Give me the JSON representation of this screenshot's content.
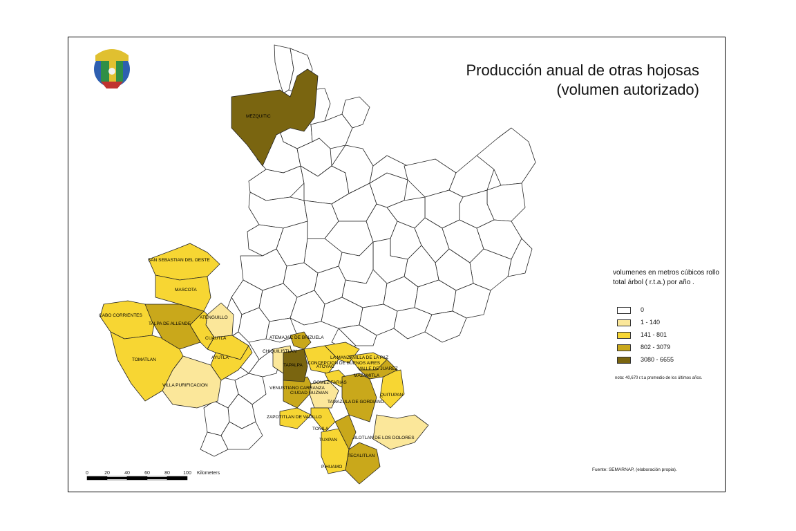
{
  "map": {
    "title_line1": "Producción anual de otras hojosas",
    "title_line2": "(volumen autorizado)",
    "legend": {
      "title": "volumenes en metros cúbicos rollo total árbol ( r.t.a.) por año .",
      "classes": [
        {
          "label": "0",
          "color": "#ffffff"
        },
        {
          "label": "1 - 140",
          "color": "#fbe79a"
        },
        {
          "label": "141 - 801",
          "color": "#f7d633"
        },
        {
          "label": "802 - 3079",
          "color": "#c9a81b"
        },
        {
          "label": "3080 - 6655",
          "color": "#7a6510"
        }
      ]
    },
    "note": "nota: 40,670 r.t.a promedio de los últimos años.",
    "source": "Fuente: SEMARNAP, (elaboración propia).",
    "scale": {
      "ticks": [
        "0",
        "20",
        "40",
        "60",
        "80",
        "100"
      ],
      "unit": "Kilometers"
    },
    "municipios": [
      {
        "name": "MEZQUITIC",
        "class": "3080 - 6655"
      },
      {
        "name": "SAN SEBASTIAN DEL OESTE",
        "class": "141 - 801"
      },
      {
        "name": "MASCOTA",
        "class": "141 - 801"
      },
      {
        "name": "CABO CORRIENTES",
        "class": "141 - 801"
      },
      {
        "name": "TALPA DE ALLENDE",
        "class": "802 - 3079"
      },
      {
        "name": "ATENGUILLO",
        "class": "1 - 140"
      },
      {
        "name": "CUAUTLA",
        "class": "141 - 801"
      },
      {
        "name": "AYUTLA",
        "class": "141 - 801"
      },
      {
        "name": "TOMATLAN",
        "class": "141 - 801"
      },
      {
        "name": "VILLA PURIFICACION",
        "class": "1 - 140"
      },
      {
        "name": "ATEMAJAC DE BRIZUELA",
        "class": "802 - 3079"
      },
      {
        "name": "CHIQUILISTLAN",
        "class": "1 - 140"
      },
      {
        "name": "TAPALPA",
        "class": "3080 - 6655"
      },
      {
        "name": "ATOYAC",
        "class": "141 - 801"
      },
      {
        "name": "CONCEPCION DE BUENOS AIRES",
        "class": "141 - 801"
      },
      {
        "name": "LA MANZANILLA DE LA PAZ",
        "class": "141 - 801"
      },
      {
        "name": "VALLE DE JUAREZ",
        "class": "802 - 3079"
      },
      {
        "name": "MAZAMITLA",
        "class": "802 - 3079"
      },
      {
        "name": "GOMEZ FARIAS",
        "class": "141 - 801"
      },
      {
        "name": "VENUSTIANO CARRANZA",
        "class": "802 - 3079"
      },
      {
        "name": "CIUDAD GUZMAN",
        "class": "1 - 140"
      },
      {
        "name": "QUITUPAN",
        "class": "141 - 801"
      },
      {
        "name": "TAMAZULA DE GORDIANO",
        "class": "802 - 3079"
      },
      {
        "name": "ZAPOTITLAN DE VADILLO",
        "class": "141 - 801"
      },
      {
        "name": "TONILA",
        "class": "141 - 801"
      },
      {
        "name": "TUXPAN",
        "class": "802 - 3079"
      },
      {
        "name": "JILOTLAN DE LOS DOLORES",
        "class": "1 - 140"
      },
      {
        "name": "TECALITLAN",
        "class": "802 - 3079"
      },
      {
        "name": "PIHUAMO",
        "class": "141 - 801"
      }
    ]
  }
}
